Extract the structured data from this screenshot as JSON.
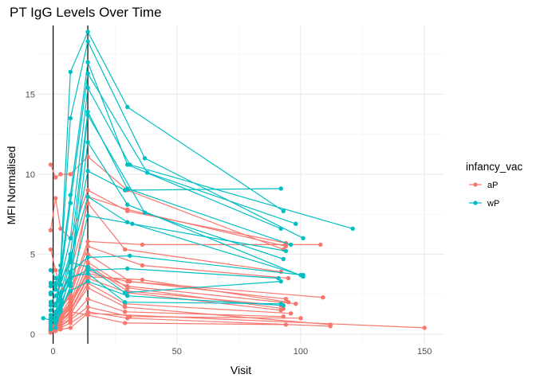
{
  "chart_data": {
    "type": "line",
    "title": "PT IgG Levels Over Time",
    "xlabel": "Visit",
    "ylabel": "MFI Normalised",
    "xlim": [
      -6,
      158
    ],
    "ylim": [
      -0.6,
      19.3
    ],
    "xticks": [
      0,
      50,
      100,
      150
    ],
    "yticks": [
      0,
      5,
      10,
      15
    ],
    "vlines": [
      0,
      14
    ],
    "grid": true,
    "legend": {
      "title": "infancy_vac",
      "position": "right"
    },
    "colors": {
      "aP": "#F8766D",
      "wP": "#00BFC4"
    },
    "series": [
      {
        "name": "aP",
        "lines": [
          [
            [
              -1,
              0.2
            ],
            [
              1,
              0.3
            ],
            [
              3,
              1.0
            ],
            [
              7,
              1.6
            ],
            [
              14,
              4.5
            ],
            [
              30,
              2.9
            ],
            [
              93,
              1.6
            ]
          ],
          [
            [
              -1,
              0.4
            ],
            [
              1,
              0.5
            ],
            [
              3,
              1.2
            ],
            [
              7,
              2.0
            ],
            [
              14,
              5.0
            ],
            [
              31,
              3.3
            ],
            [
              94,
              2.2
            ]
          ],
          [
            [
              -1,
              0.1
            ],
            [
              1,
              0.2
            ],
            [
              3,
              0.6
            ],
            [
              7,
              1.2
            ],
            [
              14,
              3.2
            ],
            [
              29,
              1.9
            ],
            [
              96,
              1.3
            ]
          ],
          [
            [
              -1,
              0.6
            ],
            [
              1,
              0.7
            ],
            [
              3,
              1.5
            ],
            [
              7,
              2.6
            ],
            [
              14,
              5.8
            ],
            [
              36,
              5.6
            ],
            [
              108,
              5.6
            ]
          ],
          [
            [
              -1,
              0.3
            ],
            [
              1,
              0.4
            ],
            [
              3,
              1.1
            ],
            [
              7,
              1.9
            ],
            [
              14,
              4.3
            ],
            [
              30,
              2.7
            ],
            [
              92,
              1.8
            ]
          ],
          [
            [
              -1,
              6.5
            ],
            [
              1,
              8.5
            ],
            [
              3,
              6.6
            ],
            [
              7,
              6.0
            ],
            [
              14,
              9.0
            ],
            [
              30,
              7.7
            ],
            [
              94,
              5.7
            ]
          ],
          [
            [
              -1,
              10.6
            ],
            [
              1,
              9.8
            ],
            [
              3,
              10.0
            ],
            [
              7,
              10.0
            ],
            [
              14,
              11.1
            ],
            [
              30,
              9.0
            ],
            [
              93,
              5.3
            ]
          ],
          [
            [
              -1,
              5.3
            ],
            [
              1,
              4.0
            ],
            [
              3,
              2.6
            ],
            [
              7,
              3.8
            ],
            [
              14,
              8.2
            ],
            [
              29,
              5.3
            ],
            [
              92,
              3.9
            ]
          ],
          [
            [
              -1,
              1.0
            ],
            [
              1,
              0.8
            ],
            [
              3,
              0.9
            ],
            [
              7,
              1.4
            ],
            [
              14,
              1.2
            ],
            [
              29,
              0.7
            ],
            [
              94,
              0.6
            ]
          ],
          [
            [
              -1,
              0.2
            ],
            [
              1,
              0.3
            ],
            [
              3,
              0.4
            ],
            [
              7,
              0.7
            ],
            [
              14,
              1.4
            ],
            [
              30,
              1.0
            ],
            [
              112,
              0.5
            ]
          ],
          [
            [
              -1,
              0.2
            ],
            [
              1,
              0.3
            ],
            [
              3,
              0.5
            ],
            [
              7,
              0.9
            ],
            [
              14,
              1.7
            ],
            [
              31,
              1.1
            ],
            [
              100,
              1.0
            ]
          ],
          [
            [
              -1,
              0.4
            ],
            [
              1,
              0.6
            ],
            [
              3,
              1.0
            ],
            [
              7,
              1.8
            ],
            [
              14,
              3.8
            ],
            [
              30,
              3.3
            ],
            [
              109,
              2.3
            ]
          ],
          [
            [
              -1,
              0.1
            ],
            [
              1,
              0.2
            ],
            [
              3,
              0.3
            ],
            [
              7,
              0.4
            ],
            [
              14,
              1.3
            ],
            [
              150,
              0.4
            ]
          ],
          [
            [
              -1,
              0.2
            ],
            [
              1,
              0.3
            ],
            [
              3,
              0.7
            ],
            [
              7,
              1.5
            ],
            [
              14,
              3.6
            ],
            [
              36,
              3.4
            ],
            [
              95,
              2.0
            ]
          ],
          [
            [
              -1,
              0.3
            ],
            [
              1,
              0.5
            ],
            [
              3,
              0.9
            ],
            [
              7,
              1.7
            ],
            [
              14,
              4.0
            ],
            [
              30,
              3.0
            ],
            [
              98,
              1.9
            ]
          ],
          [
            [
              -1,
              0.5
            ],
            [
              1,
              0.6
            ],
            [
              3,
              1.3
            ],
            [
              7,
              2.2
            ],
            [
              14,
              8.6
            ],
            [
              30,
              7.8
            ],
            [
              94,
              5.5
            ]
          ],
          [
            [
              -1,
              0.2
            ],
            [
              1,
              0.3
            ],
            [
              3,
              0.8
            ],
            [
              7,
              1.3
            ],
            [
              14,
              2.9
            ],
            [
              29,
              1.7
            ],
            [
              112,
              0.6
            ]
          ],
          [
            [
              -1,
              0.7
            ],
            [
              1,
              0.9
            ],
            [
              3,
              1.6
            ],
            [
              7,
              2.4
            ],
            [
              14,
              5.5
            ],
            [
              36,
              4.3
            ],
            [
              95,
              3.5
            ]
          ],
          [
            [
              -1,
              0.3
            ],
            [
              1,
              0.4
            ],
            [
              3,
              0.8
            ],
            [
              7,
              1.4
            ],
            [
              14,
              3.5
            ],
            [
              30,
              2.6
            ],
            [
              92,
              1.5
            ]
          ],
          [
            [
              -1,
              0.2
            ],
            [
              1,
              0.2
            ],
            [
              3,
              0.5
            ],
            [
              7,
              1.0
            ],
            [
              14,
              2.2
            ],
            [
              29,
              1.4
            ],
            [
              93,
              1.1
            ]
          ]
        ]
      },
      {
        "name": "wP",
        "lines": [
          [
            [
              -4,
              1.0
            ],
            [
              1,
              0.8
            ],
            [
              3,
              4.3
            ],
            [
              7,
              16.4
            ],
            [
              14,
              18.9
            ],
            [
              30,
              14.2
            ],
            [
              93,
              7.7
            ]
          ],
          [
            [
              -1,
              3.0
            ],
            [
              1,
              3.2
            ],
            [
              3,
              4.0
            ],
            [
              7,
              13.5
            ],
            [
              14,
              18.3
            ],
            [
              37,
              11.0
            ],
            [
              101,
              6.0
            ]
          ],
          [
            [
              -1,
              2.5
            ],
            [
              1,
              2.8
            ],
            [
              3,
              3.9
            ],
            [
              7,
              8.7
            ],
            [
              14,
              17.0
            ],
            [
              30,
              10.6
            ],
            [
              92,
              6.6
            ]
          ],
          [
            [
              -1,
              1.5
            ],
            [
              1,
              1.8
            ],
            [
              3,
              3.5
            ],
            [
              7,
              8.2
            ],
            [
              14,
              16.3
            ],
            [
              38,
              10.1
            ],
            [
              98,
              6.9
            ]
          ],
          [
            [
              -1,
              4.0
            ],
            [
              1,
              3.5
            ],
            [
              3,
              3.4
            ],
            [
              7,
              6.0
            ],
            [
              14,
              15.4
            ],
            [
              31,
              10.6
            ],
            [
              121,
              6.6
            ]
          ],
          [
            [
              -1,
              2.0
            ],
            [
              1,
              2.4
            ],
            [
              3,
              3.1
            ],
            [
              7,
              5.0
            ],
            [
              14,
              13.9
            ],
            [
              30,
              9.1
            ],
            [
              96,
              5.6
            ]
          ],
          [
            [
              -1,
              0.5
            ],
            [
              1,
              0.7
            ],
            [
              3,
              1.5
            ],
            [
              7,
              3.8
            ],
            [
              14,
              13.7
            ],
            [
              37,
              7.6
            ],
            [
              93,
              4.7
            ]
          ],
          [
            [
              -1,
              3.2
            ],
            [
              1,
              3.0
            ],
            [
              3,
              2.4
            ],
            [
              7,
              3.2
            ],
            [
              14,
              12.0
            ],
            [
              30,
              8.1
            ],
            [
              101,
              3.6
            ]
          ],
          [
            [
              -1,
              0.8
            ],
            [
              1,
              1.0
            ],
            [
              3,
              2.0
            ],
            [
              7,
              4.6
            ],
            [
              14,
              10.2
            ],
            [
              29,
              9.0
            ],
            [
              92,
              9.1
            ]
          ],
          [
            [
              -1,
              1.2
            ],
            [
              1,
              1.4
            ],
            [
              3,
              2.6
            ],
            [
              7,
              4.8
            ],
            [
              14,
              8.6
            ],
            [
              30,
              7.0
            ],
            [
              100,
              3.7
            ]
          ],
          [
            [
              -1,
              0.3
            ],
            [
              1,
              0.4
            ],
            [
              3,
              1.4
            ],
            [
              7,
              3.0
            ],
            [
              14,
              7.4
            ],
            [
              32,
              6.9
            ],
            [
              94,
              5.2
            ]
          ],
          [
            [
              -1,
              1.0
            ],
            [
              1,
              1.2
            ],
            [
              3,
              2.2
            ],
            [
              7,
              3.9
            ],
            [
              14,
              4.8
            ],
            [
              31,
              4.9
            ],
            [
              101,
              3.7
            ]
          ],
          [
            [
              -1,
              2.6
            ],
            [
              1,
              2.8
            ],
            [
              3,
              3.4
            ],
            [
              7,
              4.5
            ],
            [
              14,
              4.2
            ],
            [
              29,
              2.6
            ],
            [
              92,
              3.3
            ]
          ],
          [
            [
              -1,
              0.7
            ],
            [
              1,
              0.9
            ],
            [
              3,
              1.8
            ],
            [
              7,
              3.5
            ],
            [
              14,
              4.0
            ],
            [
              30,
              4.1
            ],
            [
              91,
              3.5
            ]
          ],
          [
            [
              -1,
              1.8
            ],
            [
              1,
              1.9
            ],
            [
              3,
              2.5
            ],
            [
              7,
              3.6
            ],
            [
              14,
              3.8
            ],
            [
              29,
              2.0
            ],
            [
              92,
              1.9
            ]
          ],
          [
            [
              -1,
              0.9
            ],
            [
              1,
              1.1
            ],
            [
              3,
              1.7
            ],
            [
              7,
              2.7
            ],
            [
              14,
              3.3
            ],
            [
              30,
              2.4
            ],
            [
              93,
              1.8
            ]
          ]
        ]
      }
    ]
  }
}
